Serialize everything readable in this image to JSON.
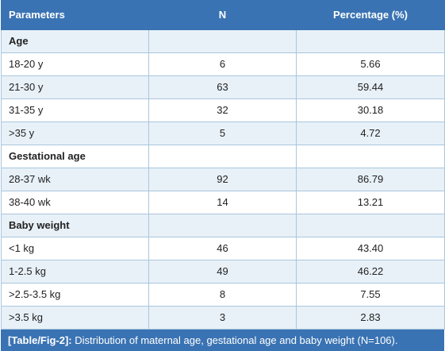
{
  "table": {
    "headers": [
      "Parameters",
      "N",
      "Percentage (%)"
    ],
    "rows": [
      {
        "type": "section",
        "label": "Age",
        "n": "",
        "pct": ""
      },
      {
        "type": "data",
        "label": "18-20 y",
        "n": "6",
        "pct": "5.66"
      },
      {
        "type": "data",
        "label": "21-30 y",
        "n": "63",
        "pct": "59.44"
      },
      {
        "type": "data",
        "label": "31-35 y",
        "n": "32",
        "pct": "30.18"
      },
      {
        "type": "data",
        "label": ">35 y",
        "n": "5",
        "pct": "4.72"
      },
      {
        "type": "section",
        "label": "Gestational age",
        "n": "",
        "pct": ""
      },
      {
        "type": "data",
        "label": "28-37 wk",
        "n": "92",
        "pct": "86.79"
      },
      {
        "type": "data",
        "label": "38-40 wk",
        "n": "14",
        "pct": "13.21"
      },
      {
        "type": "section",
        "label": "Baby weight",
        "n": "",
        "pct": ""
      },
      {
        "type": "data",
        "label": "<1 kg",
        "n": "46",
        "pct": "43.40"
      },
      {
        "type": "data",
        "label": "1-2.5 kg",
        "n": "49",
        "pct": "46.22"
      },
      {
        "type": "data",
        "label": ">2.5-3.5 kg",
        "n": "8",
        "pct": "7.55"
      },
      {
        "type": "data",
        "label": ">3.5 kg",
        "n": "3",
        "pct": "2.83"
      }
    ]
  },
  "caption": {
    "label": "[Table/Fig-2]:",
    "text": " Distribution of maternal age, gestational age and baby weight (N=106)."
  },
  "colors": {
    "header_bg": "#3a73b3",
    "alt_row_bg": "#e8f1f8",
    "border": "#a9c6dd"
  }
}
